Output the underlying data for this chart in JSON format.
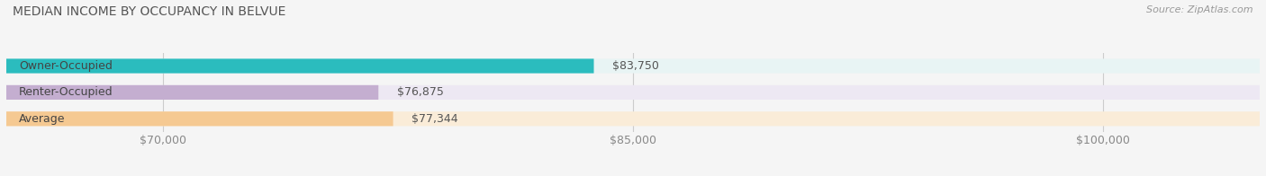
{
  "title": "MEDIAN INCOME BY OCCUPANCY IN BELVUE",
  "source": "Source: ZipAtlas.com",
  "categories": [
    "Owner-Occupied",
    "Renter-Occupied",
    "Average"
  ],
  "values": [
    83750,
    76875,
    77344
  ],
  "labels": [
    "$83,750",
    "$76,875",
    "$77,344"
  ],
  "bar_colors": [
    "#2bbcbe",
    "#c4aed0",
    "#f5c992"
  ],
  "bar_bg_colors": [
    "#e8f4f4",
    "#ede8f3",
    "#faecd8"
  ],
  "xmin": 65000,
  "xmax": 105000,
  "xticks": [
    70000,
    85000,
    100000
  ],
  "xtick_labels": [
    "$70,000",
    "$85,000",
    "$100,000"
  ],
  "title_fontsize": 10,
  "source_fontsize": 8,
  "label_fontsize": 9,
  "tick_fontsize": 9,
  "bar_height": 0.55,
  "background_color": "#f5f5f5"
}
